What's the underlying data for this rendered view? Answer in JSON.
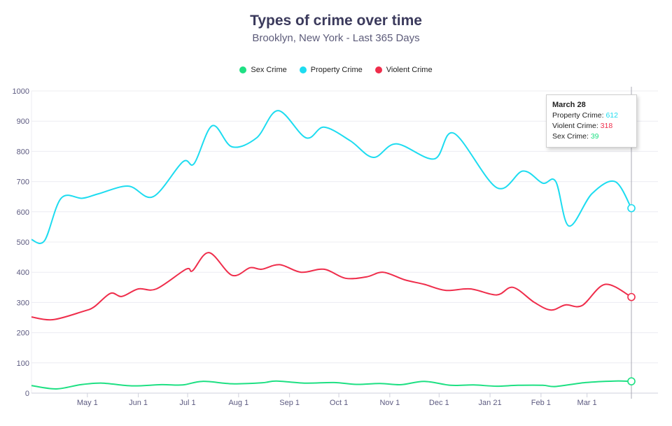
{
  "chart_data": {
    "type": "line",
    "title": "Types of crime over time",
    "subtitle": "Brooklyn, New York - Last 365 Days",
    "ylim": [
      0,
      1000
    ],
    "y_ticks": [
      "0",
      "100",
      "200",
      "300",
      "400",
      "500",
      "600",
      "700",
      "800",
      "900",
      "1000"
    ],
    "x_ticks": [
      "May 1",
      "Jun 1",
      "Jul 1",
      "Aug 1",
      "Sep 1",
      "Oct 1",
      "Nov 1",
      "Dec 1",
      "Jan 21",
      "Feb 1",
      "Mar 1"
    ],
    "x_range": [
      "2020-03-28",
      "2021-03-28"
    ],
    "legend_position": "top-center",
    "grid": true,
    "series": [
      {
        "name": "Sex Crime",
        "color": "#1ee083",
        "points": [
          [
            "2020-03-28",
            25
          ],
          [
            "2020-04-12",
            14
          ],
          [
            "2020-04-27",
            28
          ],
          [
            "2020-05-10",
            33
          ],
          [
            "2020-05-28",
            24
          ],
          [
            "2020-06-15",
            28
          ],
          [
            "2020-06-28",
            27
          ],
          [
            "2020-07-10",
            39
          ],
          [
            "2020-07-28",
            31
          ],
          [
            "2020-08-15",
            34
          ],
          [
            "2020-08-24",
            40
          ],
          [
            "2020-09-10",
            33
          ],
          [
            "2020-09-28",
            35
          ],
          [
            "2020-10-12",
            29
          ],
          [
            "2020-10-26",
            32
          ],
          [
            "2020-11-08",
            28
          ],
          [
            "2020-11-22",
            39
          ],
          [
            "2020-12-08",
            26
          ],
          [
            "2020-12-22",
            27
          ],
          [
            "2021-01-05",
            23
          ],
          [
            "2021-01-18",
            26
          ],
          [
            "2021-02-02",
            26
          ],
          [
            "2021-02-10",
            22
          ],
          [
            "2021-02-28",
            35
          ],
          [
            "2021-03-18",
            40
          ],
          [
            "2021-03-28",
            39
          ]
        ]
      },
      {
        "name": "Property Crime",
        "color": "#1ddcf0",
        "points": [
          [
            "2020-03-28",
            508
          ],
          [
            "2020-04-05",
            505
          ],
          [
            "2020-04-15",
            645
          ],
          [
            "2020-04-28",
            645
          ],
          [
            "2020-05-08",
            660
          ],
          [
            "2020-05-26",
            685
          ],
          [
            "2020-06-10",
            650
          ],
          [
            "2020-06-28",
            765
          ],
          [
            "2020-07-05",
            760
          ],
          [
            "2020-07-16",
            885
          ],
          [
            "2020-07-28",
            815
          ],
          [
            "2020-08-12",
            845
          ],
          [
            "2020-08-25",
            935
          ],
          [
            "2020-09-11",
            845
          ],
          [
            "2020-09-22",
            880
          ],
          [
            "2020-10-08",
            835
          ],
          [
            "2020-10-22",
            780
          ],
          [
            "2020-11-05",
            825
          ],
          [
            "2020-11-28",
            775
          ],
          [
            "2020-12-10",
            860
          ],
          [
            "2021-01-05",
            680
          ],
          [
            "2021-01-21",
            735
          ],
          [
            "2021-02-02",
            695
          ],
          [
            "2021-02-10",
            700
          ],
          [
            "2021-02-18",
            553
          ],
          [
            "2021-03-04",
            660
          ],
          [
            "2021-03-18",
            700
          ],
          [
            "2021-03-28",
            612
          ]
        ]
      },
      {
        "name": "Violent Crime",
        "color": "#ef2d4b",
        "points": [
          [
            "2020-03-28",
            252
          ],
          [
            "2020-04-10",
            243
          ],
          [
            "2020-04-28",
            270
          ],
          [
            "2020-05-05",
            285
          ],
          [
            "2020-05-15",
            330
          ],
          [
            "2020-05-22",
            320
          ],
          [
            "2020-06-01",
            345
          ],
          [
            "2020-06-12",
            345
          ],
          [
            "2020-06-30",
            410
          ],
          [
            "2020-07-04",
            405
          ],
          [
            "2020-07-14",
            465
          ],
          [
            "2020-07-28",
            390
          ],
          [
            "2020-08-08",
            415
          ],
          [
            "2020-08-15",
            410
          ],
          [
            "2020-08-26",
            425
          ],
          [
            "2020-09-08",
            400
          ],
          [
            "2020-09-22",
            410
          ],
          [
            "2020-10-05",
            380
          ],
          [
            "2020-10-18",
            385
          ],
          [
            "2020-10-28",
            400
          ],
          [
            "2020-11-10",
            375
          ],
          [
            "2020-11-22",
            360
          ],
          [
            "2020-12-05",
            340
          ],
          [
            "2020-12-20",
            345
          ],
          [
            "2021-01-05",
            325
          ],
          [
            "2021-01-15",
            350
          ],
          [
            "2021-01-28",
            300
          ],
          [
            "2021-02-07",
            275
          ],
          [
            "2021-02-16",
            292
          ],
          [
            "2021-02-26",
            290
          ],
          [
            "2021-03-12",
            360
          ],
          [
            "2021-03-28",
            318
          ]
        ]
      }
    ]
  },
  "tooltip": {
    "date": "March 28",
    "rows": [
      {
        "label": "Property Crime: ",
        "value": "612",
        "color": "#1ddcf0"
      },
      {
        "label": "Violent Crime: ",
        "value": "318",
        "color": "#ef2d4b"
      },
      {
        "label": "Sex Crime: ",
        "value": "39",
        "color": "#1ee083"
      }
    ]
  }
}
